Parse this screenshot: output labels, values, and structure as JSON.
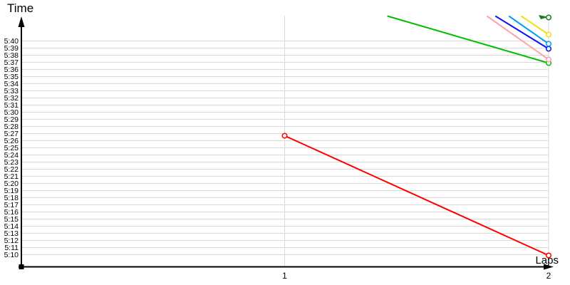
{
  "chart_data": {
    "type": "line",
    "title": "",
    "xlabel": "Laps",
    "ylabel": "Time",
    "x_ticks": [
      "1",
      "2"
    ],
    "y_ticks": [
      "5:40",
      "5:39",
      "5:38",
      "5:37",
      "5:36",
      "5:35",
      "5:34",
      "5:33",
      "5:32",
      "5:31",
      "5:30",
      "5:29",
      "5:28",
      "5:27",
      "5:26",
      "5:25",
      "5:24",
      "5:23",
      "5:22",
      "5:21",
      "5:20",
      "5:19",
      "5:18",
      "5:17",
      "5:16",
      "5:15",
      "5:14",
      "5:13",
      "5:12",
      "5:11",
      "5:10"
    ],
    "y_axis_note": "minutes:seconds, 5:10 at bottom to 5:40 at top, 1-second gridlines; values above ~5:44 are clipped at the plot top",
    "grid": true,
    "legend": "none",
    "series": [
      {
        "name": "green",
        "color": "#00c000",
        "points": [
          {
            "lap": 1,
            "time": "5:47.7",
            "seconds": 347.7,
            "offchart": true
          },
          {
            "lap": 2,
            "time": "5:36.9",
            "seconds": 336.9
          }
        ]
      },
      {
        "name": "pink",
        "color": "#ffa0ac",
        "points": [
          {
            "lap": 1,
            "time": "6:03.5",
            "seconds": 363.5,
            "offchart": true
          },
          {
            "lap": 2,
            "time": "5:37.4",
            "seconds": 337.4
          }
        ]
      },
      {
        "name": "blue",
        "color": "#1010ff",
        "points": [
          {
            "lap": 1,
            "time": "6:01.7",
            "seconds": 361.7,
            "offchart": true
          },
          {
            "lap": 2,
            "time": "5:38.9",
            "seconds": 338.9
          }
        ]
      },
      {
        "name": "cyan",
        "color": "#00a2f0",
        "points": [
          {
            "lap": 1,
            "time": "6:05.5",
            "seconds": 365.5,
            "offchart": true
          },
          {
            "lap": 2,
            "time": "5:39.6",
            "seconds": 339.6
          }
        ]
      },
      {
        "name": "yellow",
        "color": "#f0e10c",
        "points": [
          {
            "lap": 1,
            "time": "6:05.9",
            "seconds": 365.9,
            "offchart": true
          },
          {
            "lap": 2,
            "time": "5:40.9",
            "seconds": 340.9
          }
        ]
      },
      {
        "name": "dark-green",
        "color": "#217a21",
        "glyph": "pennant",
        "points": [
          {
            "lap": 1,
            "time": "5:48.8",
            "seconds": 348.8,
            "offchart": true
          },
          {
            "lap": 2,
            "time": "5:43.3",
            "seconds": 343.3
          }
        ]
      },
      {
        "name": "red",
        "color": "#ff0000",
        "points": [
          {
            "lap": 1,
            "time": "5:26.7",
            "seconds": 326.7
          },
          {
            "lap": 2,
            "time": "5:09.9",
            "seconds": 309.9
          }
        ]
      }
    ]
  },
  "colors": {
    "background": "#ffffff",
    "grid": "#d9d9d9",
    "axis": "#000000",
    "text": "#000000"
  }
}
